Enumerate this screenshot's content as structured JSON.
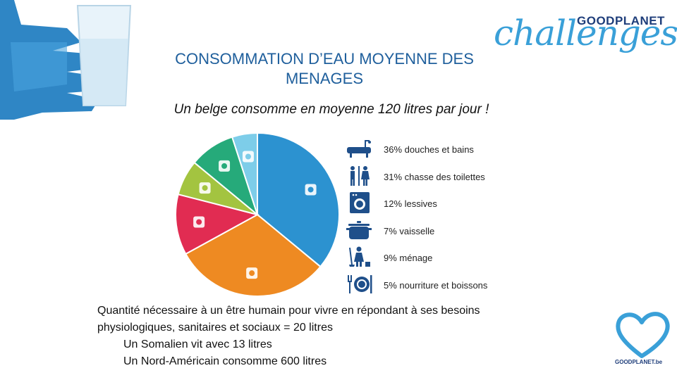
{
  "title_line1": "CONSOMMATION D’EAU MOYENNE DES",
  "title_line2": "MENAGES",
  "subtitle": "Un belge consomme en moyenne 120 litres par jour !",
  "brand": {
    "main": "challenges",
    "top": "GOODPLANET"
  },
  "heart_label": "GOODPLANET.be",
  "chart_data": {
    "type": "pie",
    "slices": [
      {
        "label": "36% douches et bains",
        "value": 36,
        "color": "#2c92d0",
        "icon": "bathtub-icon"
      },
      {
        "label": "31% chasse des toilettes",
        "value": 31,
        "color": "#ee8a22",
        "icon": "toilet-icon"
      },
      {
        "label": "12% lessives",
        "value": 12,
        "color": "#e12c52",
        "icon": "washing-machine-icon"
      },
      {
        "label": "7% vaisselle",
        "value": 7,
        "color": "#a3c440",
        "icon": "cooking-pot-icon"
      },
      {
        "label": "9% ménage",
        "value": 9,
        "color": "#26aa7a",
        "icon": "cleaning-person-icon"
      },
      {
        "label": "5% nourriture et boissons",
        "value": 5,
        "color": "#7dcde9",
        "icon": "fork-plate-icon"
      }
    ]
  },
  "bottom": {
    "line1": "Quantité nécessaire à un être humain pour vivre en répondant à ses besoins",
    "line2": "physiologiques, sanitaires et sociaux = 20 litres",
    "line3": "Un Somalien vit avec 13 litres",
    "line4": "Un Nord-Américain consomme 600 litres"
  }
}
